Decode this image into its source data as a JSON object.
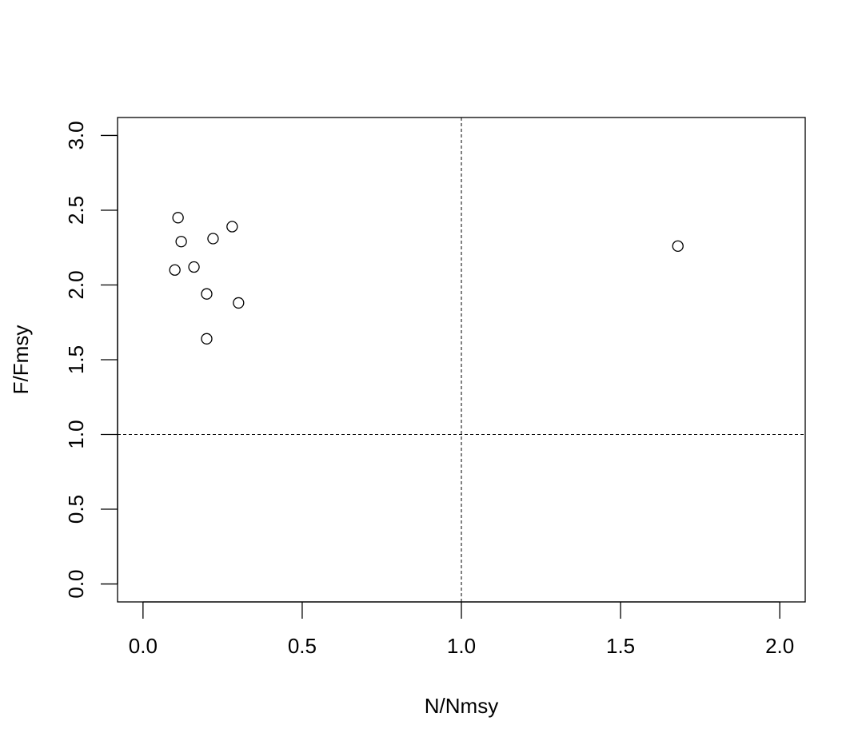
{
  "chart_data": {
    "type": "scatter",
    "title": "",
    "xlabel": "N/Nmsy",
    "ylabel": "F/Fmsy",
    "xlim": [
      -0.08,
      2.08
    ],
    "ylim": [
      -0.12,
      3.12
    ],
    "xticks": [
      0.0,
      0.5,
      1.0,
      1.5,
      2.0
    ],
    "xtick_labels": [
      "0.0",
      "0.5",
      "1.0",
      "1.5",
      "2.0"
    ],
    "yticks": [
      0.0,
      0.5,
      1.0,
      1.5,
      2.0,
      2.5,
      3.0
    ],
    "ytick_labels": [
      "0.0",
      "0.5",
      "1.0",
      "1.5",
      "2.0",
      "2.5",
      "3.0"
    ],
    "reference_lines": {
      "vertical_x": 1.0,
      "horizontal_y": 1.0,
      "style": "dashed"
    },
    "marker": "open-circle",
    "grid": false,
    "legend": "none",
    "points": [
      {
        "x": 0.11,
        "y": 2.45
      },
      {
        "x": 0.12,
        "y": 2.29
      },
      {
        "x": 0.1,
        "y": 2.1
      },
      {
        "x": 0.16,
        "y": 2.12
      },
      {
        "x": 0.22,
        "y": 2.31
      },
      {
        "x": 0.28,
        "y": 2.39
      },
      {
        "x": 0.2,
        "y": 1.94
      },
      {
        "x": 0.3,
        "y": 1.88
      },
      {
        "x": 0.2,
        "y": 1.64
      },
      {
        "x": 1.68,
        "y": 2.26
      }
    ]
  }
}
